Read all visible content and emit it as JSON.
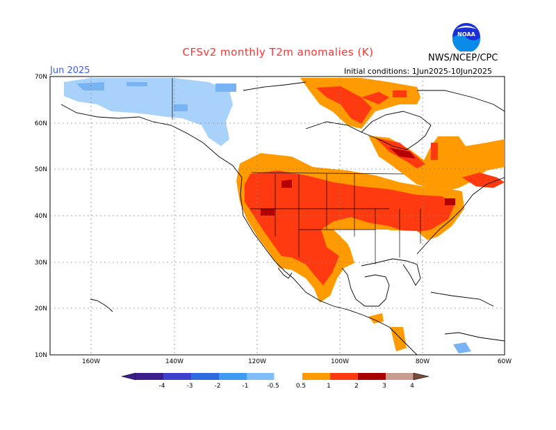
{
  "title": "CFSv2 monthly T2m anomalies (K)",
  "month": "Jun 2025",
  "initial_conditions": "Initial conditions: 1Jun2025-10Jun2025",
  "agency": "NWS/NCEP/CPC",
  "logo_text": "NOAA",
  "lat_labels": [
    "70N",
    "60N",
    "50N",
    "40N",
    "30N",
    "20N",
    "10N"
  ],
  "lon_labels": [
    "160W",
    "140W",
    "120W",
    "100W",
    "80W",
    "60W"
  ],
  "legend": {
    "labels": [
      "-4",
      "-3",
      "-2",
      "-1",
      "-0.5",
      "0.5",
      "1",
      "2",
      "3",
      "4"
    ],
    "colors": [
      "#3c1e8c",
      "#3f3fcf",
      "#2e6be0",
      "#3f9bf2",
      "#7fbdf7",
      "#ffffff",
      "#ff9a00",
      "#ff3a10",
      "#a80000",
      "#c89c90",
      "#7a4a3a"
    ]
  },
  "anomaly_colors": {
    "cool_light": "#a9d2fa",
    "cool_mid": "#78b4f4",
    "warm_light": "#ff9a00",
    "warm_mid": "#ff3a10",
    "warm_dark": "#b40000"
  }
}
